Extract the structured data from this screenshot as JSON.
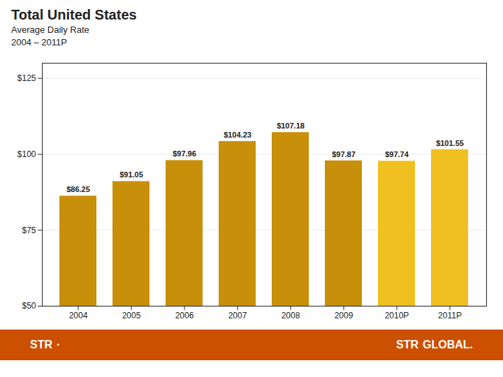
{
  "chart_data": {
    "type": "bar",
    "title": "Total United States",
    "subtitle": [
      "Average Daily Rate",
      "2004 – 2011P"
    ],
    "categories": [
      "2004",
      "2005",
      "2006",
      "2007",
      "2008",
      "2009",
      "2010P",
      "2011P"
    ],
    "values": [
      86.25,
      91.05,
      97.96,
      104.23,
      107.18,
      97.87,
      97.74,
      101.55
    ],
    "value_labels": [
      "$86.25",
      "$91.05",
      "$97.96",
      "$104.23",
      "$107.18",
      "$97.87",
      "$97.74",
      "$101.55"
    ],
    "data_labels": true,
    "colors": [
      "#C8900A",
      "#C8900A",
      "#C8900A",
      "#C8900A",
      "#C8900A",
      "#C8900A",
      "#F0C020",
      "#F0C020"
    ],
    "ylim": [
      50,
      130
    ],
    "yticks": [
      {
        "value": 50,
        "label": "$50"
      },
      {
        "value": 75,
        "label": "$75"
      },
      {
        "value": 100,
        "label": "$100"
      },
      {
        "value": 125,
        "label": "$125"
      }
    ],
    "grid": true,
    "annotations": [
      "STR",
      "·",
      "STR",
      "GLOBAL."
    ]
  }
}
